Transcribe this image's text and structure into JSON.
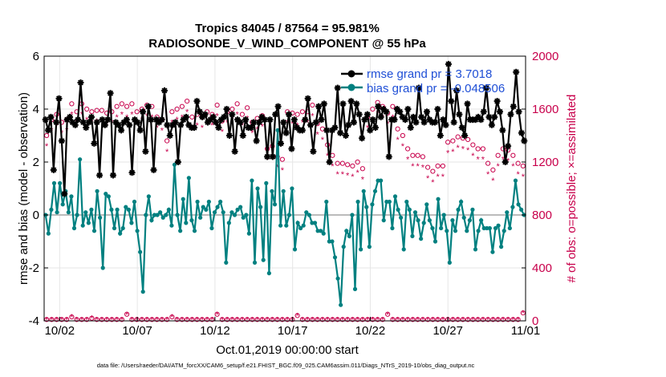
{
  "chart_data": {
    "type": "line",
    "title_line1": "Tropics 84045 / 87564 = 95.981%",
    "title_line2": "RADIOSONDE_V_WIND_COMPONENT @ 55 hPa",
    "ylabel_left": "rmse and bias (model - observation)",
    "ylabel_right": "# of obs: o=possible; ×=assimilated",
    "xlabel": "Oct.01,2019 00:00:00 start",
    "footer": "data file: /Users/raeder/DAI/ATM_forcXX/CAM6_setup/f.e21.FHIST_BGC.f09_025.CAM6assim.011/Diags_NTrS_2019-10/obs_diag_output.nc",
    "ylim_left": [
      -4,
      6
    ],
    "ylim_right": [
      0,
      2000
    ],
    "xlim": [
      0,
      31
    ],
    "yticks_left": [
      "-4",
      "-2",
      "0",
      "2",
      "4",
      "6"
    ],
    "yticks_right": [
      "0",
      "400",
      "800",
      "1200",
      "1600",
      "2000"
    ],
    "xtick_labels": [
      "10/02",
      "10/07",
      "10/12",
      "10/17",
      "10/22",
      "10/27",
      "11/01"
    ],
    "xtick_days": [
      1,
      6,
      11,
      16,
      21,
      26,
      31
    ],
    "legend": [
      "rmse grand pr = 3.7018",
      "bias grand pr = -0.048506"
    ],
    "colors": {
      "rmse": "#000000",
      "bias": "#008080",
      "obs": "#c8004b",
      "zero": "#bbbbbb"
    },
    "series": [
      {
        "name": "rmse",
        "values": [
          3.6,
          3.2,
          3.7,
          1.7,
          3.5,
          4.4,
          2.8,
          0.8,
          3.6,
          3.7,
          3.5,
          3.4,
          3.6,
          5.0,
          3.5,
          3.3,
          3.5,
          3.7,
          2.7,
          3.5,
          1.5,
          3.6,
          3.4,
          3.6,
          4.6,
          1.5,
          3.5,
          3.4,
          3.2,
          3.5,
          3.6,
          3.4,
          1.6,
          3.6,
          3.5,
          3.2,
          3.9,
          2.4,
          4.1,
          3.6,
          1.7,
          3.6,
          3.5,
          3.6,
          4.7,
          3.4,
          3.0,
          3.4,
          3.5,
          2.0,
          3.4,
          3.6,
          3.7,
          3.4,
          3.3,
          3.3,
          4.3,
          3.9,
          3.7,
          3.8,
          3.5,
          3.6,
          3.7,
          3.5,
          3.3,
          3.6,
          3.7,
          4.0,
          3.0,
          3.8,
          2.4,
          3.6,
          3.5,
          3.0,
          3.6,
          3.3,
          3.3,
          3.5,
          2.8,
          3.5,
          3.7,
          3.6,
          2.2,
          3.6,
          2.2,
          3.8,
          4.1,
          2.7,
          3.5,
          3.1,
          3.8,
          2.5,
          3.6,
          3.3,
          3.2,
          3.2,
          3.6,
          4.4,
          3.4,
          2.4,
          3.5,
          4.1,
          3.6,
          4.2,
          3.2,
          2.0,
          3.2,
          3.3,
          4.8,
          3.1,
          4.2,
          3.0,
          3.4,
          4.3,
          3.5,
          4.2,
          3.8,
          2.9,
          3.6,
          3.8,
          3.2,
          3.6,
          3.3,
          4.1,
          3.7,
          4.0,
          3.9,
          2.2,
          3.6,
          3.6,
          4.0,
          3.9,
          3.7,
          3.6,
          4.0,
          3.3,
          3.7,
          3.5,
          4.8,
          3.7,
          3.5,
          3.9,
          3.6,
          3.5,
          3.5,
          4.0,
          3.0,
          3.6,
          3.4,
          5.7,
          4.3,
          3.5,
          4.7,
          3.8,
          3.3,
          3.0,
          4.2,
          3.6,
          3.6,
          3.6,
          3.7,
          3.6,
          3.9,
          4.8,
          3.7,
          3.4,
          3.7,
          4.3,
          3.9,
          3.2,
          2.0,
          2.6,
          3.8,
          4.1,
          5.4,
          3.9,
          3.1,
          2.8
        ]
      },
      {
        "name": "bias",
        "values": [
          0.0,
          -0.7,
          0.2,
          1.2,
          0.1,
          1.2,
          0.4,
          0.9,
          0.1,
          0.7,
          -0.5,
          0.0,
          2.1,
          -0.4,
          0.1,
          -0.3,
          0.2,
          -0.6,
          0.9,
          -0.1,
          -2.0,
          0.8,
          0.7,
          0.2,
          -0.5,
          0.2,
          -0.7,
          -0.5,
          0.3,
          0.2,
          -0.3,
          0.5,
          -0.6,
          -1.4,
          -2.9,
          0.0,
          0.7,
          -0.2,
          0.0,
          0.0,
          0.1,
          -0.1,
          0.0,
          0.2,
          -0.4,
          1.9,
          0.0,
          -0.6,
          0.6,
          -0.3,
          1.4,
          -0.2,
          -0.6,
          0.5,
          -0.1,
          0.3,
          0.2,
          0.5,
          -0.5,
          0.1,
          0.3,
          0.5,
          0.1,
          -1.8,
          -0.3,
          0.1,
          0.0,
          0.2,
          0.3,
          -0.1,
          0.0,
          -0.7,
          1.3,
          -1.8,
          1.0,
          0.3,
          -1.7,
          1.2,
          -2.2,
          0.9,
          0.4,
          3.2,
          -0.4,
          0.9,
          -0.4,
          0.0,
          1.0,
          -1.3,
          -0.3,
          -0.5,
          -0.4,
          0.1,
          0.0,
          -0.3,
          -0.3,
          -0.6,
          -0.6,
          -0.7,
          0.5,
          -1.0,
          -1.0,
          -1.6,
          -2.4,
          -3.4,
          -1.2,
          -0.6,
          -0.8,
          0.0,
          -2.8,
          0.5,
          -1.3,
          0.9,
          0.3,
          -1.2,
          0.4,
          0.9,
          1.3,
          1.3,
          -0.2,
          0.5,
          0.5,
          -0.5,
          0.7,
          0.2,
          -0.1,
          -1.3,
          0.5,
          0.2,
          -0.8,
          0.1,
          -0.2,
          -0.9,
          -0.3,
          0.4,
          -0.2,
          -0.5,
          -1.0,
          0.6,
          -0.5,
          0.0,
          -0.6,
          -1.8,
          -0.2,
          -0.6,
          0.2,
          0.5,
          -0.1,
          -0.6,
          -0.2,
          0.2,
          -1.3,
          -0.6,
          -0.2,
          -0.5,
          -0.5,
          -0.5,
          -1.4,
          -0.5,
          -0.4,
          -1.2,
          -0.6,
          0.1,
          -0.5,
          0.3,
          1.3,
          0.4,
          0.2,
          0.0
        ]
      },
      {
        "name": "obs_possible",
        "values": [
          1400,
          1520,
          1560,
          1500,
          1520,
          1640,
          1580,
          1640,
          1600,
          1580,
          1590,
          1590,
          1570,
          1580,
          1620,
          1640,
          1620,
          1640,
          1580,
          1600,
          1630,
          1620,
          1540,
          1520,
          1360,
          1580,
          1600,
          1620,
          1660,
          1540,
          1560,
          1540,
          1580,
          1560,
          1630,
          1510,
          1580,
          1600,
          1640,
          1560,
          1610,
          1500,
          1530,
          1550,
          1300,
          1320,
          1240,
          1220,
          1580,
          1570,
          1560,
          1580,
          1580,
          1630,
          1490,
          1450,
          1330,
          1250,
          1190,
          1190,
          1180,
          1170,
          1200,
          1150,
          1540,
          1600,
          1650,
          1620,
          1570,
          1620,
          1450,
          1400,
          1300,
          1250,
          1250,
          1240,
          1160,
          1130,
          1170,
          1170,
          1350,
          1360,
          1390,
          1380,
          1370,
          1330,
          1300,
          1300,
          1190,
          1140,
          1250,
          1300,
          1290,
          1250,
          1190,
          1170
        ]
      },
      {
        "name": "obs_assimilated",
        "values": [
          1320,
          1440,
          1480,
          1420,
          1440,
          1560,
          1500,
          1560,
          1520,
          1500,
          1510,
          1510,
          1490,
          1500,
          1540,
          1560,
          1540,
          1560,
          1500,
          1520,
          1550,
          1540,
          1460,
          1440,
          1280,
          1500,
          1520,
          1540,
          1580,
          1460,
          1480,
          1460,
          1500,
          1480,
          1550,
          1430,
          1500,
          1520,
          1560,
          1480,
          1530,
          1420,
          1450,
          1470,
          1220,
          1240,
          1160,
          1140,
          1500,
          1490,
          1480,
          1500,
          1500,
          1550,
          1410,
          1370,
          1250,
          1170,
          1110,
          1110,
          1100,
          1090,
          1120,
          1070,
          1460,
          1520,
          1570,
          1540,
          1490,
          1540,
          1370,
          1320,
          1220,
          1170,
          1170,
          1160,
          1080,
          1050,
          1090,
          1090,
          1270,
          1280,
          1310,
          1300,
          1290,
          1250,
          1220,
          1220,
          1110,
          1060,
          1170,
          1220,
          1210,
          1170,
          1110,
          1090
        ]
      },
      {
        "name": "obs_bottom_possible",
        "values": [
          10,
          10,
          10,
          10,
          10,
          30,
          10,
          10,
          10,
          20,
          10,
          10,
          10,
          10,
          10,
          10,
          50,
          10,
          10,
          10,
          10,
          10,
          10,
          10,
          10,
          30,
          10,
          10,
          10,
          10,
          10,
          10,
          10,
          10,
          50,
          10,
          10,
          10,
          10,
          10,
          10,
          10,
          10,
          10,
          10,
          10,
          10,
          10,
          10,
          10,
          40,
          10,
          10,
          10,
          10,
          10,
          10,
          10,
          10,
          10,
          10,
          10,
          10,
          10,
          10,
          10,
          10,
          10,
          50,
          10,
          10,
          10,
          10,
          10,
          10,
          10,
          10,
          10,
          10,
          10,
          10,
          10,
          10,
          10,
          10,
          10,
          10,
          10,
          10,
          10,
          10,
          10,
          10,
          10,
          10,
          60
        ]
      }
    ]
  }
}
